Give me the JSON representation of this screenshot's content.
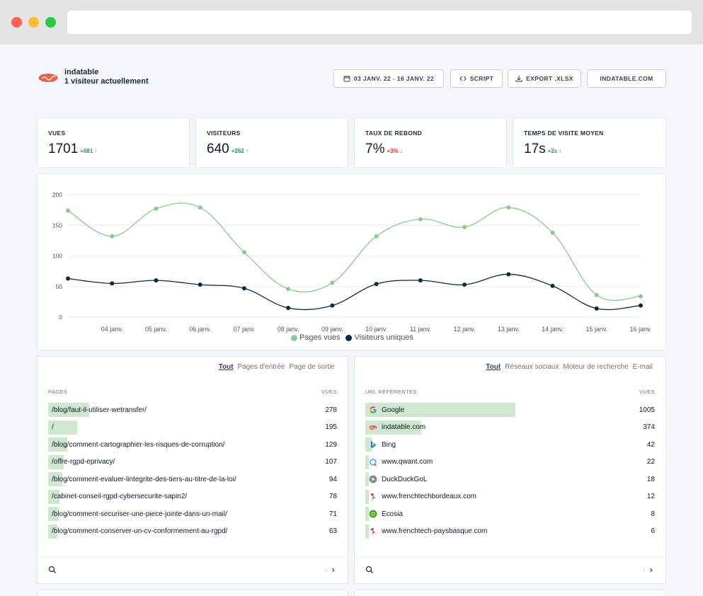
{
  "header": {
    "site_name": "indatable",
    "visitors_now": "1 visiteur actuellement",
    "date_range": "03 JANV. 22 - 16 JANV. 22",
    "script_label": "SCRIPT",
    "export_label": "EXPORT .XLSX",
    "domain_label": "INDATABLE.COM"
  },
  "stats": [
    {
      "label": "VUES",
      "value": "1701",
      "delta": "+681",
      "trend": "up"
    },
    {
      "label": "VISITEURS",
      "value": "640",
      "delta": "+262",
      "trend": "up"
    },
    {
      "label": "TAUX DE REBOND",
      "value": "7%",
      "delta": "+3%",
      "trend": "down"
    },
    {
      "label": "TEMPS DE VISITE MOYEN",
      "value": "17s",
      "delta": "+2s",
      "trend": "up"
    }
  ],
  "chart_data": {
    "type": "line",
    "x": [
      "03 janv.",
      "04 janv.",
      "05 janv.",
      "06 janv.",
      "07 janv.",
      "08 janv.",
      "09 janv.",
      "10 janv.",
      "11 janv.",
      "12 janv.",
      "13 janv.",
      "14 janv.",
      "15 janv.",
      "16 janv."
    ],
    "x_tick_labels": [
      "04 janv.",
      "05 janv.",
      "06 janv.",
      "07 janv.",
      "08 janv.",
      "09 janv.",
      "10 janv.",
      "11 janv.",
      "12 janv.",
      "13 janv.",
      "14 janv.",
      "15 janv.",
      "16 janv."
    ],
    "y_ticks": [
      0,
      50,
      100,
      150,
      200
    ],
    "ylim": [
      0,
      200
    ],
    "grid": true,
    "legend_position": "bottom",
    "series": [
      {
        "name": "Pages vues",
        "color": "#8cc98c",
        "values": [
          174,
          132,
          177,
          179,
          106,
          46,
          56,
          132,
          160,
          147,
          179,
          138,
          36,
          34
        ]
      },
      {
        "name": "Visiteurs uniques",
        "color": "#0e2a3b",
        "values": [
          63,
          55,
          60,
          53,
          47,
          15,
          19,
          54,
          60,
          53,
          70,
          51,
          14,
          19
        ]
      }
    ]
  },
  "pages_table": {
    "tabs": [
      "Tout",
      "Pages d'entrée",
      "Page de sortie"
    ],
    "col_left": "PAGES",
    "col_right": "VUES",
    "rows": [
      {
        "label": "/blog/faut-il-utiliser-wetransfer/",
        "value": "278",
        "n": 278
      },
      {
        "label": "/",
        "value": "195",
        "n": 195
      },
      {
        "label": "/blog/comment-cartographier-les-risques-de-corruption/",
        "value": "129",
        "n": 129
      },
      {
        "label": "/offre-rgpd-eprivacy/",
        "value": "107",
        "n": 107
      },
      {
        "label": "/blog/comment-evaluer-lintegrite-des-tiers-au-titre-de-la-loi/",
        "value": "94",
        "n": 94
      },
      {
        "label": "/cabinet-conseil-rgpd-cybersecurite-sapin2/",
        "value": "78",
        "n": 78
      },
      {
        "label": "/blog/comment-securiser-une-piece-jointe-dans-un-mail/",
        "value": "71",
        "n": 71
      },
      {
        "label": "/blog/comment-conserver-un-cv-conformement-au-rgpd/",
        "value": "63",
        "n": 63
      }
    ]
  },
  "referrers_table": {
    "tabs": [
      "Tout",
      "Réseaux sociaux",
      "Moteur de recherche",
      "E-mail"
    ],
    "col_left": "URL RÉFÉRENTES",
    "col_right": "VUES",
    "rows": [
      {
        "label": "Google",
        "value": "1005",
        "n": 1005,
        "icon": "google-icon"
      },
      {
        "label": "indatable.com",
        "value": "374",
        "n": 374,
        "icon": "indatable-icon"
      },
      {
        "label": "Bing",
        "value": "42",
        "n": 42,
        "icon": "bing-icon"
      },
      {
        "label": "www.qwant.com",
        "value": "22",
        "n": 22,
        "icon": "qwant-icon"
      },
      {
        "label": "DuckDuckGoL",
        "value": "18",
        "n": 18,
        "icon": "duckduckgo-icon"
      },
      {
        "label": "www.frenchtechbordeaux.com",
        "value": "12",
        "n": 12,
        "icon": "frenchtech-icon"
      },
      {
        "label": "Ecosia",
        "value": "8",
        "n": 8,
        "icon": "ecosia-icon"
      },
      {
        "label": "www.frenchtech-paysbasque.com",
        "value": "6",
        "n": 6,
        "icon": "frenchtech-icon"
      }
    ]
  },
  "colors": {
    "bar": "#cfe6cf",
    "pages_line": "#8cc98c",
    "visitors_line": "#0e2a3b",
    "up": "#16a34a",
    "down": "#dc2626"
  }
}
